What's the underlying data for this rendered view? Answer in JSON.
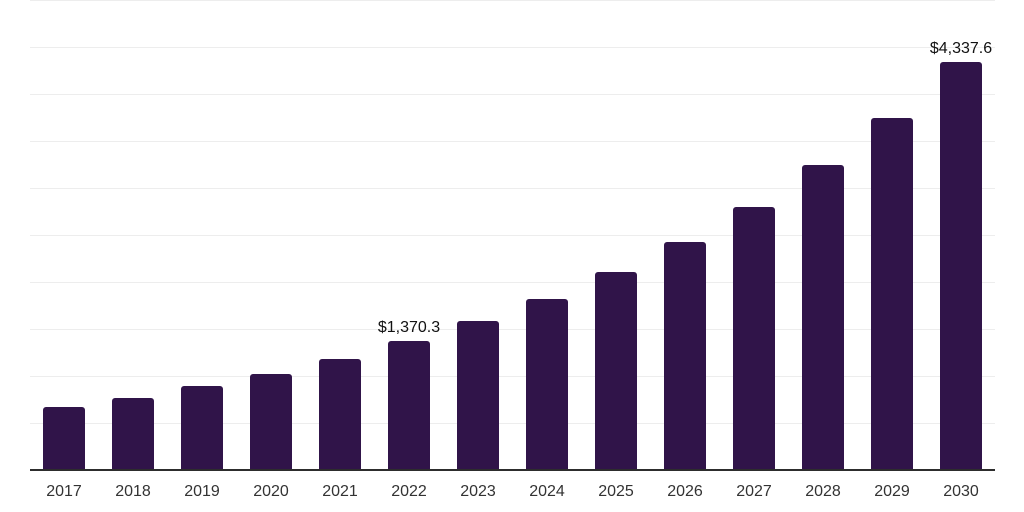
{
  "chart_data": {
    "type": "bar",
    "title": "",
    "xlabel": "",
    "ylabel": "",
    "categories": [
      "2017",
      "2018",
      "2019",
      "2020",
      "2021",
      "2022",
      "2023",
      "2024",
      "2025",
      "2026",
      "2027",
      "2028",
      "2029",
      "2030"
    ],
    "values": [
      670,
      770,
      893,
      1025,
      1180,
      1370.3,
      1584,
      1820,
      2106,
      2424,
      2801,
      3242,
      3742,
      4337.6
    ],
    "annotations": [
      {
        "category": "2022",
        "text": "$1,370.3"
      },
      {
        "category": "2030",
        "text": "$4,337.6"
      }
    ],
    "ylim": [
      0,
      5000
    ],
    "gridline_step": 500,
    "grid": true,
    "legend": false,
    "colors": {
      "bar": "#301449",
      "axis": "#2d2d2d",
      "gridline": "#ededed",
      "data_label": "#111111",
      "tick_label": "#333333",
      "background": "#ffffff"
    }
  }
}
